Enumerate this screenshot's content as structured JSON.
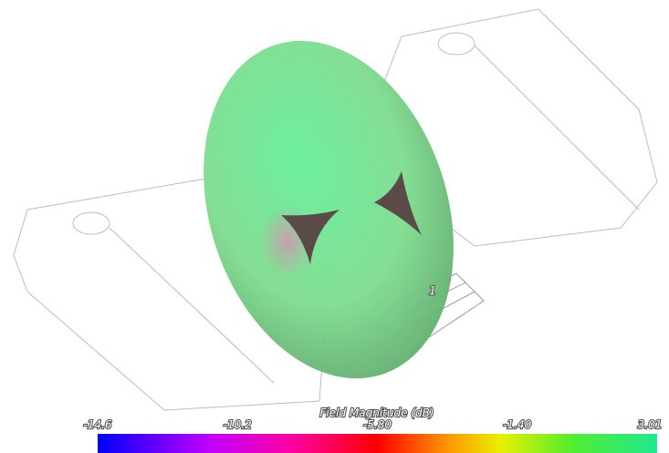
{
  "colorbar": {
    "title": "Field Magnitude (dB)",
    "ticks": [
      "-14.6",
      "-10.2",
      "-5.80",
      "-1.40",
      "3.01"
    ]
  },
  "marker": {
    "label": "1"
  }
}
